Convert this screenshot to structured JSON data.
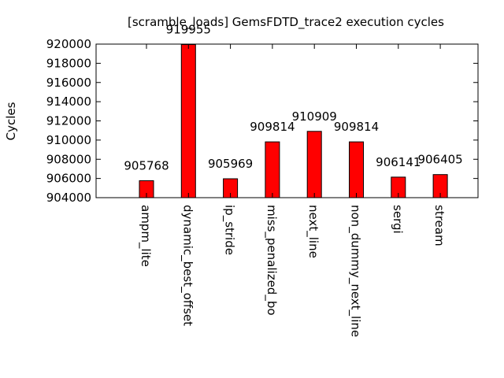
{
  "chart_data": {
    "type": "bar",
    "title": "[scramble_loads] GemsFDTD_trace2 execution cycles",
    "xlabel": "",
    "ylabel": "Cycles",
    "ylim": [
      904000,
      920000
    ],
    "yticks": [
      904000,
      906000,
      908000,
      910000,
      912000,
      914000,
      916000,
      918000,
      920000
    ],
    "ytick_labels": [
      "904000",
      "906000",
      "908000",
      "910000",
      "912000",
      "914000",
      "916000",
      "918000",
      "920000"
    ],
    "categories": [
      "ampm_lite",
      "dynamic_best_offset",
      "ip_stride",
      "miss_penalized_bo",
      "next_line",
      "non_dummy_next_line",
      "sergi",
      "stream"
    ],
    "values": [
      905768,
      919955,
      905969,
      909814,
      910909,
      909814,
      906141,
      906405
    ],
    "data_labels": [
      "905768",
      "919955",
      "905969",
      "909814",
      "910909",
      "909814",
      "906141",
      "906405"
    ],
    "bar_color": "#ff0000",
    "grid": false,
    "legend": "none"
  }
}
